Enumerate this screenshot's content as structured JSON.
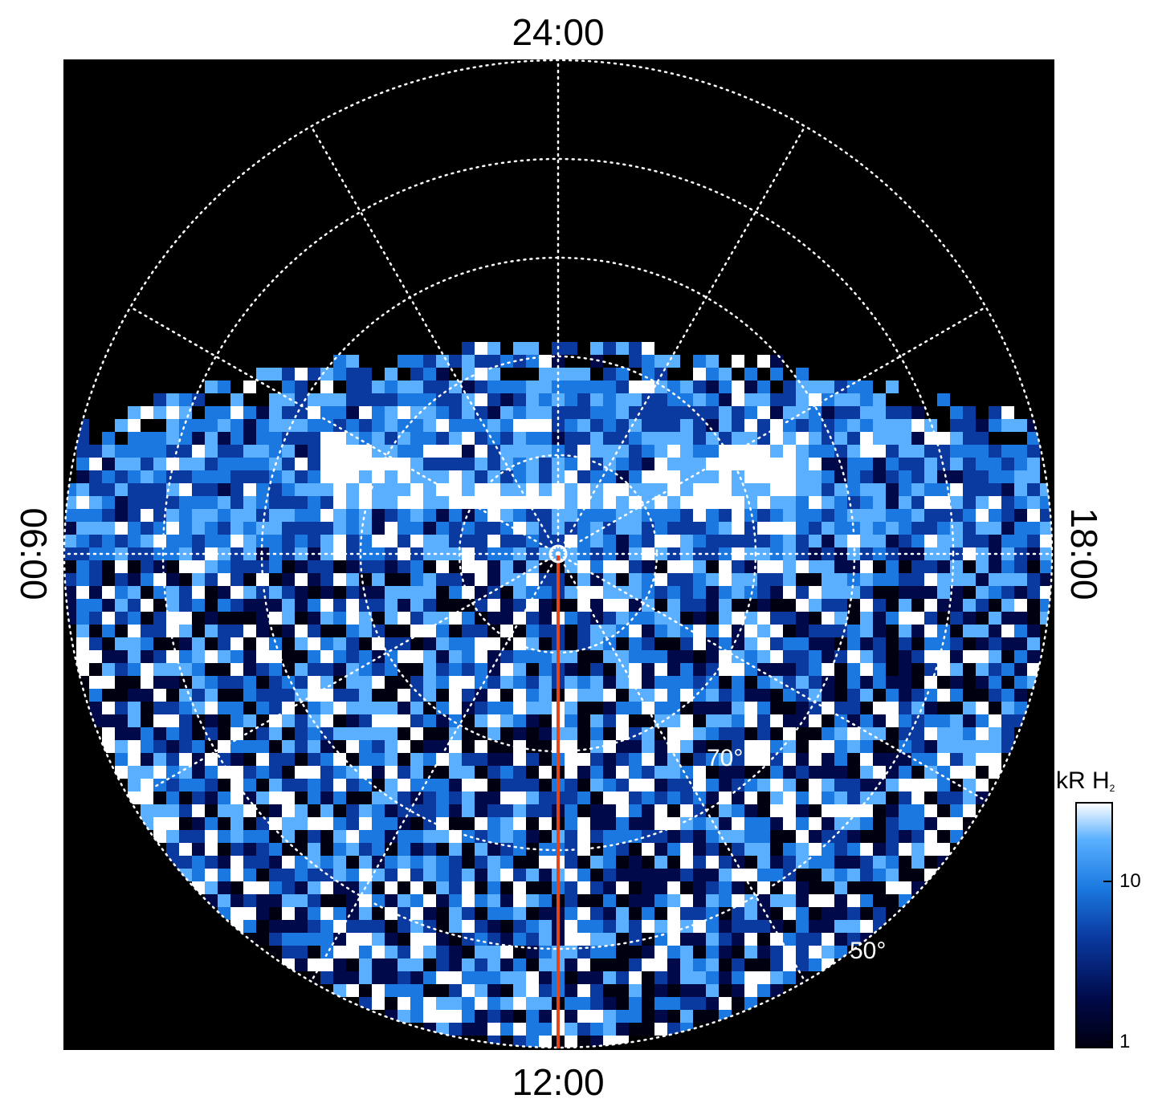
{
  "chart_data": {
    "type": "heatmap",
    "projection": "polar",
    "title": "",
    "local_time_labels": {
      "top": "24:00",
      "bottom": "12:00",
      "left": "06:00",
      "right": "18:00"
    },
    "latitude_labels": [
      "70°",
      "50°"
    ],
    "colorbar": {
      "title_main": "kR H",
      "title_subscript": "2",
      "scale": "log",
      "range": [
        1,
        25
      ],
      "tick_labels": [
        "10",
        "1"
      ],
      "colors": [
        "#000010",
        "#000a4a",
        "#0a3aa0",
        "#1a78e0",
        "#5ab0ff",
        "#ffffff"
      ]
    },
    "grid": {
      "style": "dotted",
      "color": "#ffffff",
      "latitude_circles_deg": [
        80,
        70,
        60,
        50
      ],
      "meridian_spacing_hours": 2
    },
    "meridian_line": {
      "local_time": "12:00",
      "color": "#e0461c"
    },
    "emission": {
      "auroral_oval": "bright arc on the nightside near 24:00",
      "dayside": "noisy background emission"
    }
  }
}
